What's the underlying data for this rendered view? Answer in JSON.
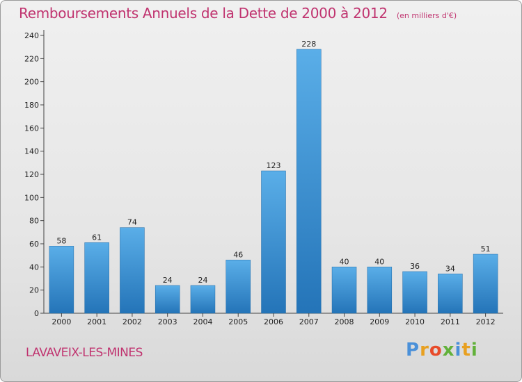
{
  "chart_data": {
    "type": "bar",
    "title": "Remboursements Annuels de la Dette de 2000 à 2012",
    "subtitle": "(en milliers d'€)",
    "categories": [
      "2000",
      "2001",
      "2002",
      "2003",
      "2004",
      "2005",
      "2006",
      "2007",
      "2008",
      "2009",
      "2010",
      "2011",
      "2012"
    ],
    "values": [
      58,
      61,
      74,
      24,
      24,
      46,
      123,
      228,
      40,
      40,
      36,
      34,
      51
    ],
    "ylim": [
      0,
      240
    ],
    "yticks": [
      0,
      20,
      40,
      60,
      80,
      100,
      120,
      140,
      160,
      180,
      200,
      220,
      240
    ],
    "grid": false,
    "bar_color": "#3a8fd6"
  },
  "place": "LAVAVEIX-LES-MINES",
  "logo": {
    "letters": [
      "P",
      "r",
      "o",
      "x",
      "i",
      "t",
      "i"
    ],
    "colors": [
      "#4a90d9",
      "#e8a020",
      "#e84b2a",
      "#62b13a",
      "#4a90d9",
      "#e8a020",
      "#62b13a"
    ]
  }
}
